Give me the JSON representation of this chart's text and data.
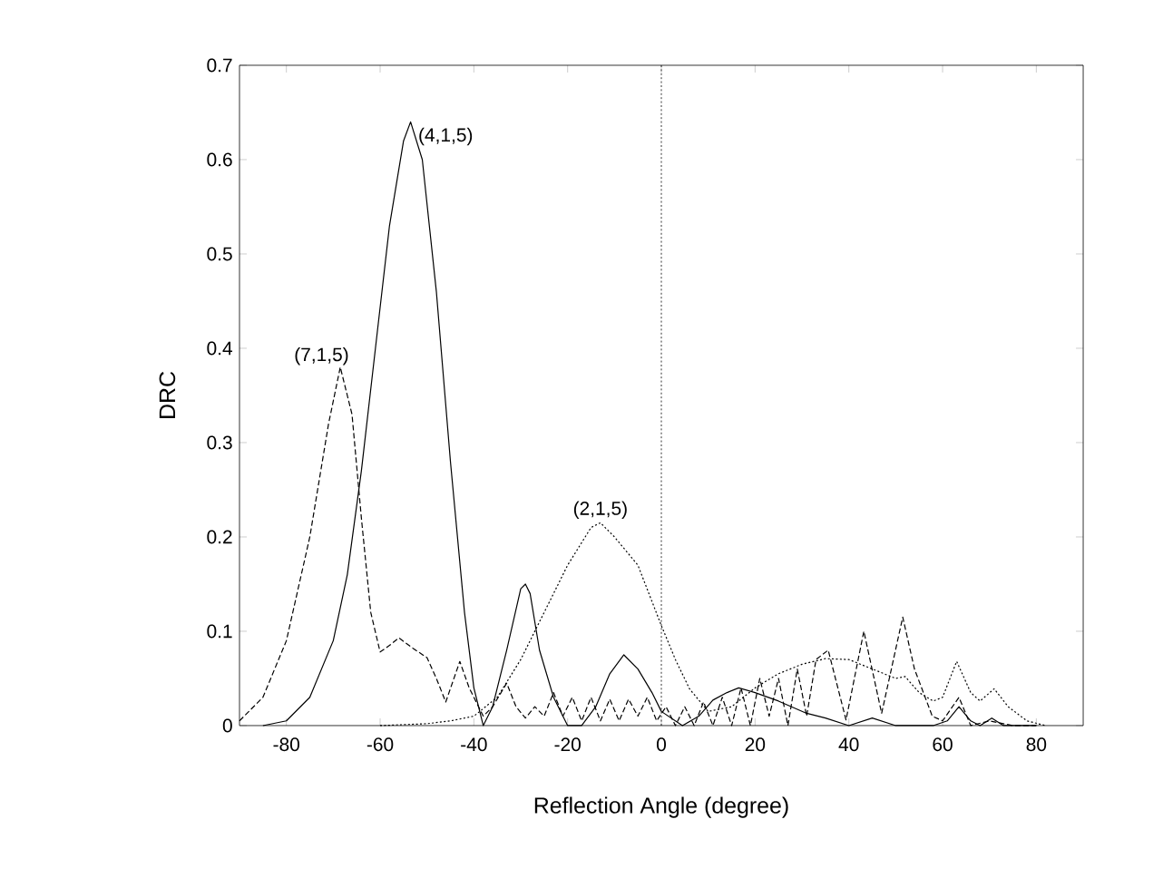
{
  "chart_data": {
    "type": "line",
    "xlabel": "Reflection Angle (degree)",
    "ylabel": "DRC",
    "xlim": [
      -90,
      90
    ],
    "ylim": [
      0,
      0.7
    ],
    "xticks": [
      -80,
      -60,
      -40,
      -20,
      0,
      20,
      40,
      60,
      80
    ],
    "yticks": [
      0,
      0.1,
      0.2,
      0.3,
      0.4,
      0.5,
      0.6,
      0.7
    ],
    "grid": false,
    "legend": false,
    "marker": "none",
    "series": [
      {
        "name": "(4,1,5)",
        "color": "#000000",
        "line_style": "solid",
        "x": [
          -85,
          -80,
          -75,
          -70,
          -67,
          -64,
          -61,
          -58,
          -55,
          -53.5,
          -51,
          -48,
          -45,
          -42,
          -40,
          -38,
          -36,
          -33,
          -30,
          -29,
          -28,
          -26,
          -23,
          -20,
          -17,
          -14,
          -11,
          -8,
          -5,
          -2,
          0,
          4.5,
          8,
          11,
          14,
          16.5,
          20,
          25,
          31,
          35,
          40,
          45,
          50,
          58,
          61,
          63.5,
          66,
          68,
          70.5,
          73,
          80
        ],
        "values": [
          0,
          0.005,
          0.03,
          0.09,
          0.16,
          0.27,
          0.4,
          0.53,
          0.62,
          0.64,
          0.6,
          0.46,
          0.28,
          0.12,
          0.04,
          0,
          0.02,
          0.08,
          0.145,
          0.15,
          0.14,
          0.08,
          0.03,
          0,
          0,
          0.02,
          0.055,
          0.075,
          0.06,
          0.035,
          0.015,
          0,
          0.01,
          0.027,
          0.035,
          0.04,
          0.035,
          0.026,
          0.013,
          0.008,
          0,
          0.008,
          0,
          0,
          0.005,
          0.02,
          0.005,
          0,
          0.008,
          0,
          0
        ]
      },
      {
        "name": "(7,1,5)",
        "color": "#000000",
        "line_style": "dashed",
        "x": [
          -90,
          -85,
          -80,
          -75,
          -71,
          -68.5,
          -66,
          -64,
          -62,
          -60,
          -58,
          -56,
          -53,
          -50,
          -48,
          -46,
          -43,
          -41,
          -38,
          -36,
          -33,
          -31,
          -29,
          -27,
          -25,
          -23,
          -21,
          -19,
          -17,
          -15,
          -13,
          -11,
          -9,
          -7,
          -5,
          -3,
          -1,
          1,
          3,
          5,
          7,
          9,
          11,
          13,
          15,
          17,
          19,
          21,
          23,
          25,
          27,
          29,
          31,
          33,
          35.6,
          39.4,
          43.2,
          47,
          51.5,
          54,
          57.8,
          60,
          63.5,
          66,
          70,
          75,
          80
        ],
        "values": [
          0.005,
          0.03,
          0.09,
          0.2,
          0.32,
          0.38,
          0.33,
          0.22,
          0.12,
          0.078,
          0.085,
          0.093,
          0.082,
          0.072,
          0.05,
          0.025,
          0.068,
          0.04,
          0.01,
          0.02,
          0.045,
          0.02,
          0.008,
          0.02,
          0.01,
          0.035,
          0.01,
          0.03,
          0.005,
          0.03,
          0.005,
          0.028,
          0.005,
          0.028,
          0.01,
          0.03,
          0.005,
          0.02,
          0,
          0.02,
          0,
          0.025,
          0,
          0.03,
          0,
          0.04,
          0,
          0.05,
          0.01,
          0.05,
          0,
          0.06,
          0.01,
          0.07,
          0.08,
          0.006,
          0.1,
          0.013,
          0.115,
          0.06,
          0.01,
          0.005,
          0.03,
          0,
          0.005,
          0,
          0
        ]
      },
      {
        "name": "(2,1,5)",
        "color": "#000000",
        "line_style": "dotted",
        "x": [
          -60,
          -50,
          -45,
          -40,
          -35,
          -30,
          -25,
          -20,
          -15,
          -13,
          -10,
          -5,
          0,
          3,
          6,
          10,
          15,
          20,
          25,
          30,
          35,
          40,
          45,
          50,
          52,
          55,
          58,
          60,
          63,
          66,
          68,
          71,
          74,
          78,
          82
        ],
        "values": [
          0,
          0.002,
          0.005,
          0.01,
          0.03,
          0.07,
          0.12,
          0.17,
          0.21,
          0.215,
          0.2,
          0.17,
          0.106,
          0.07,
          0.039,
          0.015,
          0.02,
          0.04,
          0.055,
          0.065,
          0.071,
          0.07,
          0.06,
          0.05,
          0.052,
          0.035,
          0.026,
          0.03,
          0.068,
          0.035,
          0.026,
          0.039,
          0.02,
          0.005,
          0
        ]
      }
    ],
    "ref_lines": [
      {
        "axis": "x",
        "value": 0,
        "line_style": "dotted"
      }
    ]
  }
}
